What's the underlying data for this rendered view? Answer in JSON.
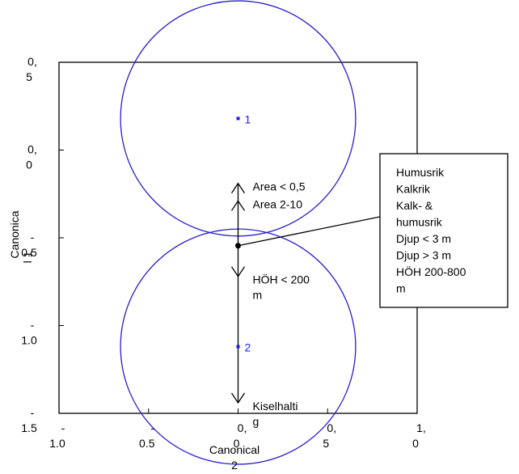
{
  "chart_data": {
    "type": "scatter",
    "xlabel": [
      "Canonical",
      "2"
    ],
    "ylabel": [
      "Canonica",
      "l 1"
    ],
    "xlim": [
      -1.0,
      1.0
    ],
    "ylim": [
      -1.5,
      0.5
    ],
    "x_ticks": [
      {
        "value": -1.0,
        "lines": [
          "-",
          "1.0"
        ]
      },
      {
        "value": -0.5,
        "lines": [
          "-",
          "0.5"
        ]
      },
      {
        "value": 0.0,
        "lines": [
          "0,",
          "0"
        ]
      },
      {
        "value": 0.5,
        "lines": [
          "0,",
          "5"
        ]
      },
      {
        "value": 1.0,
        "lines": [
          "1,",
          "0"
        ]
      }
    ],
    "y_ticks": [
      {
        "value": 0.5,
        "lines": [
          "0,",
          "5"
        ]
      },
      {
        "value": 0.0,
        "lines": [
          "0,",
          "0"
        ]
      },
      {
        "value": -0.5,
        "lines": [
          "-",
          "0.5"
        ]
      },
      {
        "value": -1.0,
        "lines": [
          "-",
          "1.0"
        ]
      },
      {
        "value": -1.5,
        "lines": [
          "-",
          "1.5"
        ]
      }
    ],
    "groups": [
      {
        "label": "1",
        "x": 0.0,
        "y": 0.18,
        "radius": 0.67
      },
      {
        "label": "2",
        "x": 0.0,
        "y": -1.12,
        "radius": 0.67
      }
    ],
    "arrows": [
      {
        "label": [
          "Area < 0,5"
        ],
        "x": 0.0,
        "y": -0.19
      },
      {
        "label": [
          "Area 2-10"
        ],
        "x": 0.0,
        "y": -0.29
      },
      {
        "label": [
          "HÖH < 200",
          "m"
        ],
        "x": 0.0,
        "y": -0.72
      },
      {
        "label": [
          "Kiselhalti",
          "g"
        ],
        "x": 0.0,
        "y": -1.44
      }
    ],
    "center_point": {
      "x": 0.0,
      "y": -0.545
    },
    "callout": {
      "lines": [
        "Humusrik",
        "Kalkrik",
        "Kalk- &",
        "humusrik",
        "Djup < 3 m",
        "Djup > 3 m",
        "HÖH 200-800",
        "m"
      ]
    },
    "colors": {
      "circle": "#2a1fcf",
      "point": "#1a1aff",
      "axis": "#000000"
    }
  }
}
